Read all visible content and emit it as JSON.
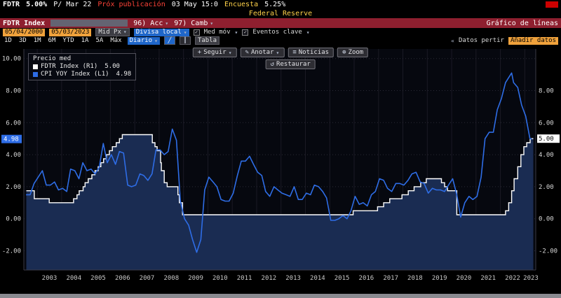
{
  "icons": {
    "dropdown": "▾",
    "check": "✓",
    "crosshair": "+",
    "pencil": "✎",
    "news": "≡",
    "zoom": "⊕",
    "restore": "↺",
    "line_chart": "╱",
    "candle_chart": "║",
    "chevrons": "«"
  },
  "colors": {
    "bar_red": "#8e1f2f",
    "accent_amber": "#f0a23c",
    "accent_blue": "#1f66c9",
    "line_white": "#ffffff",
    "line_blue": "#2e6de6",
    "yellow": "#ffd24a"
  },
  "header": {
    "ticker": "FDTR",
    "price": "5.00%",
    "p_label": "P/ Mar 22",
    "next_label": "Próx publicación",
    "next_value": "03 May 15:0",
    "survey_label": "Encuesta",
    "survey_value": "5.25%",
    "org": "Federal Reserve"
  },
  "redbar": {
    "ticker": "FDTR Index",
    "action1": "96) Acc",
    "action2": "97) Camb",
    "right": "Gráfico de líneas"
  },
  "toolbar_dates": {
    "from": "05/04/2000",
    "to": "05/03/2023",
    "price_opt": "Mid Px",
    "currency": "Divisa local",
    "mov_avg": "Med móv",
    "key_events": "Eventos clave"
  },
  "toolbar_period": {
    "ranges": [
      "1D",
      "3D",
      "1M",
      "6M",
      "YTD",
      "1A",
      "5A",
      "Máx"
    ],
    "freq": "Diario",
    "table": "Tabla",
    "right_label": "Datos pertir",
    "add_data": "Añadir datos"
  },
  "chart_toolbar": {
    "seguir": "Seguir",
    "anotar": "Anotar",
    "noticias": "Noticias",
    "zoom": "Zoom",
    "restaurar": "Restaurar"
  },
  "legend": {
    "title": "Precio med",
    "items": [
      {
        "label": "FDTR Index (R1)",
        "value": "5.00"
      },
      {
        "label": "CPI YOY Index (L1)",
        "value": "4.98"
      }
    ]
  },
  "chart_data": {
    "type": "line",
    "x_range": [
      2002.45,
      2023.45
    ],
    "y_range": [
      -3.2,
      10.6
    ],
    "y_ticks_left": [
      "10.00",
      "8.00",
      "6.00",
      "4.00",
      "2.00",
      "0.00",
      "-2.00"
    ],
    "y_tick_values": [
      10,
      8,
      6,
      4,
      2,
      0,
      -2
    ],
    "y_ticks_right": [
      "8.00",
      "6.00",
      "4.00",
      "2.00",
      "0.00",
      "-2.00"
    ],
    "y_tick_values_right": [
      8,
      6,
      4,
      2,
      0,
      -2
    ],
    "x_ticks": [
      2003,
      2004,
      2005,
      2006,
      2007,
      2008,
      2009,
      2010,
      2011,
      2012,
      2013,
      2014,
      2015,
      2016,
      2017,
      2018,
      2019,
      2020,
      2021,
      2022,
      2023
    ],
    "marker_left": {
      "label": "4.98",
      "value": 4.98,
      "color": "#2e6de6"
    },
    "marker_right": {
      "label": "5.00",
      "value": 5.0,
      "color": "#ffffff"
    },
    "series": [
      {
        "name": "FDTR Index",
        "axis": "R1",
        "type": "step",
        "color": "#ffffff",
        "fill": "#1a2c52",
        "last": "5.00",
        "points": [
          [
            2002.55,
            1.75
          ],
          [
            2002.88,
            1.25
          ],
          [
            2003.49,
            1.0
          ],
          [
            2004.49,
            1.25
          ],
          [
            2004.63,
            1.5
          ],
          [
            2004.72,
            1.75
          ],
          [
            2004.88,
            2.0
          ],
          [
            2004.96,
            2.25
          ],
          [
            2005.09,
            2.5
          ],
          [
            2005.24,
            2.75
          ],
          [
            2005.37,
            3.0
          ],
          [
            2005.5,
            3.25
          ],
          [
            2005.61,
            3.5
          ],
          [
            2005.72,
            3.75
          ],
          [
            2005.84,
            4.0
          ],
          [
            2005.96,
            4.25
          ],
          [
            2006.08,
            4.5
          ],
          [
            2006.24,
            4.75
          ],
          [
            2006.37,
            5.0
          ],
          [
            2006.49,
            5.25
          ],
          [
            2007.72,
            4.75
          ],
          [
            2007.83,
            4.5
          ],
          [
            2007.92,
            4.25
          ],
          [
            2008.06,
            3.5
          ],
          [
            2008.09,
            3.0
          ],
          [
            2008.21,
            2.25
          ],
          [
            2008.33,
            2.0
          ],
          [
            2008.77,
            1.5
          ],
          [
            2008.83,
            1.0
          ],
          [
            2008.96,
            0.25
          ],
          [
            2015.96,
            0.5
          ],
          [
            2016.96,
            0.75
          ],
          [
            2017.21,
            1.0
          ],
          [
            2017.46,
            1.25
          ],
          [
            2017.96,
            1.5
          ],
          [
            2018.22,
            1.75
          ],
          [
            2018.46,
            2.0
          ],
          [
            2018.73,
            2.25
          ],
          [
            2018.96,
            2.5
          ],
          [
            2019.58,
            2.25
          ],
          [
            2019.71,
            2.0
          ],
          [
            2019.83,
            1.75
          ],
          [
            2020.21,
            0.25
          ],
          [
            2022.21,
            0.5
          ],
          [
            2022.34,
            1.0
          ],
          [
            2022.46,
            1.75
          ],
          [
            2022.56,
            2.5
          ],
          [
            2022.71,
            3.25
          ],
          [
            2022.84,
            4.0
          ],
          [
            2022.96,
            4.5
          ],
          [
            2023.08,
            4.75
          ],
          [
            2023.22,
            5.0
          ],
          [
            2023.35,
            5.0
          ]
        ]
      },
      {
        "name": "CPI YOY Index",
        "axis": "L1",
        "type": "line",
        "color": "#2e6de6",
        "last": "4.98",
        "points": [
          [
            2002.54,
            1.5
          ],
          [
            2002.71,
            1.5
          ],
          [
            2002.87,
            2.2
          ],
          [
            2003.04,
            2.6
          ],
          [
            2003.21,
            3.0
          ],
          [
            2003.37,
            2.1
          ],
          [
            2003.54,
            2.1
          ],
          [
            2003.71,
            2.3
          ],
          [
            2003.87,
            1.8
          ],
          [
            2004.04,
            1.9
          ],
          [
            2004.21,
            1.7
          ],
          [
            2004.37,
            3.1
          ],
          [
            2004.54,
            3.0
          ],
          [
            2004.71,
            2.5
          ],
          [
            2004.87,
            3.5
          ],
          [
            2005.04,
            3.0
          ],
          [
            2005.21,
            3.1
          ],
          [
            2005.37,
            2.8
          ],
          [
            2005.54,
            3.2
          ],
          [
            2005.71,
            4.7
          ],
          [
            2005.87,
            3.5
          ],
          [
            2006.04,
            4.0
          ],
          [
            2006.21,
            3.4
          ],
          [
            2006.37,
            4.2
          ],
          [
            2006.54,
            4.1
          ],
          [
            2006.71,
            2.1
          ],
          [
            2006.87,
            2.0
          ],
          [
            2007.04,
            2.1
          ],
          [
            2007.21,
            2.8
          ],
          [
            2007.37,
            2.7
          ],
          [
            2007.54,
            2.4
          ],
          [
            2007.71,
            2.8
          ],
          [
            2007.87,
            4.3
          ],
          [
            2008.04,
            4.3
          ],
          [
            2008.21,
            4.0
          ],
          [
            2008.37,
            4.2
          ],
          [
            2008.54,
            5.6
          ],
          [
            2008.71,
            4.9
          ],
          [
            2008.87,
            1.1
          ],
          [
            2009.04,
            0.0
          ],
          [
            2009.21,
            -0.4
          ],
          [
            2009.37,
            -1.3
          ],
          [
            2009.54,
            -2.1
          ],
          [
            2009.71,
            -1.3
          ],
          [
            2009.87,
            1.8
          ],
          [
            2010.04,
            2.6
          ],
          [
            2010.21,
            2.3
          ],
          [
            2010.37,
            2.0
          ],
          [
            2010.54,
            1.2
          ],
          [
            2010.71,
            1.1
          ],
          [
            2010.87,
            1.1
          ],
          [
            2011.04,
            1.6
          ],
          [
            2011.21,
            2.7
          ],
          [
            2011.37,
            3.6
          ],
          [
            2011.54,
            3.6
          ],
          [
            2011.71,
            3.9
          ],
          [
            2011.87,
            3.4
          ],
          [
            2012.04,
            2.9
          ],
          [
            2012.21,
            2.7
          ],
          [
            2012.37,
            1.7
          ],
          [
            2012.54,
            1.4
          ],
          [
            2012.71,
            2.0
          ],
          [
            2012.87,
            1.8
          ],
          [
            2013.04,
            1.6
          ],
          [
            2013.21,
            1.5
          ],
          [
            2013.37,
            1.4
          ],
          [
            2013.54,
            2.0
          ],
          [
            2013.71,
            1.2
          ],
          [
            2013.87,
            1.2
          ],
          [
            2014.04,
            1.6
          ],
          [
            2014.21,
            1.5
          ],
          [
            2014.37,
            2.1
          ],
          [
            2014.54,
            2.0
          ],
          [
            2014.71,
            1.7
          ],
          [
            2014.87,
            1.3
          ],
          [
            2015.04,
            -0.1
          ],
          [
            2015.21,
            -0.1
          ],
          [
            2015.37,
            0.0
          ],
          [
            2015.54,
            0.2
          ],
          [
            2015.71,
            0.0
          ],
          [
            2015.87,
            0.5
          ],
          [
            2016.04,
            1.4
          ],
          [
            2016.21,
            0.9
          ],
          [
            2016.37,
            1.0
          ],
          [
            2016.54,
            0.8
          ],
          [
            2016.71,
            1.5
          ],
          [
            2016.87,
            1.7
          ],
          [
            2017.04,
            2.5
          ],
          [
            2017.21,
            2.4
          ],
          [
            2017.37,
            1.9
          ],
          [
            2017.54,
            1.7
          ],
          [
            2017.71,
            2.2
          ],
          [
            2017.87,
            2.2
          ],
          [
            2018.04,
            2.1
          ],
          [
            2018.21,
            2.4
          ],
          [
            2018.37,
            2.8
          ],
          [
            2018.54,
            2.9
          ],
          [
            2018.71,
            2.3
          ],
          [
            2018.87,
            2.2
          ],
          [
            2019.04,
            1.6
          ],
          [
            2019.21,
            1.9
          ],
          [
            2019.37,
            1.8
          ],
          [
            2019.54,
            1.8
          ],
          [
            2019.71,
            1.7
          ],
          [
            2019.87,
            2.1
          ],
          [
            2020.04,
            2.5
          ],
          [
            2020.21,
            1.5
          ],
          [
            2020.37,
            0.1
          ],
          [
            2020.54,
            1.0
          ],
          [
            2020.71,
            1.4
          ],
          [
            2020.87,
            1.2
          ],
          [
            2021.04,
            1.4
          ],
          [
            2021.21,
            2.6
          ],
          [
            2021.37,
            5.0
          ],
          [
            2021.54,
            5.4
          ],
          [
            2021.71,
            5.4
          ],
          [
            2021.87,
            6.8
          ],
          [
            2022.04,
            7.5
          ],
          [
            2022.21,
            8.5
          ],
          [
            2022.46,
            9.1
          ],
          [
            2022.54,
            8.5
          ],
          [
            2022.71,
            8.2
          ],
          [
            2022.87,
            7.1
          ],
          [
            2023.04,
            6.4
          ],
          [
            2023.21,
            5.0
          ],
          [
            2023.29,
            4.98
          ]
        ]
      }
    ]
  }
}
